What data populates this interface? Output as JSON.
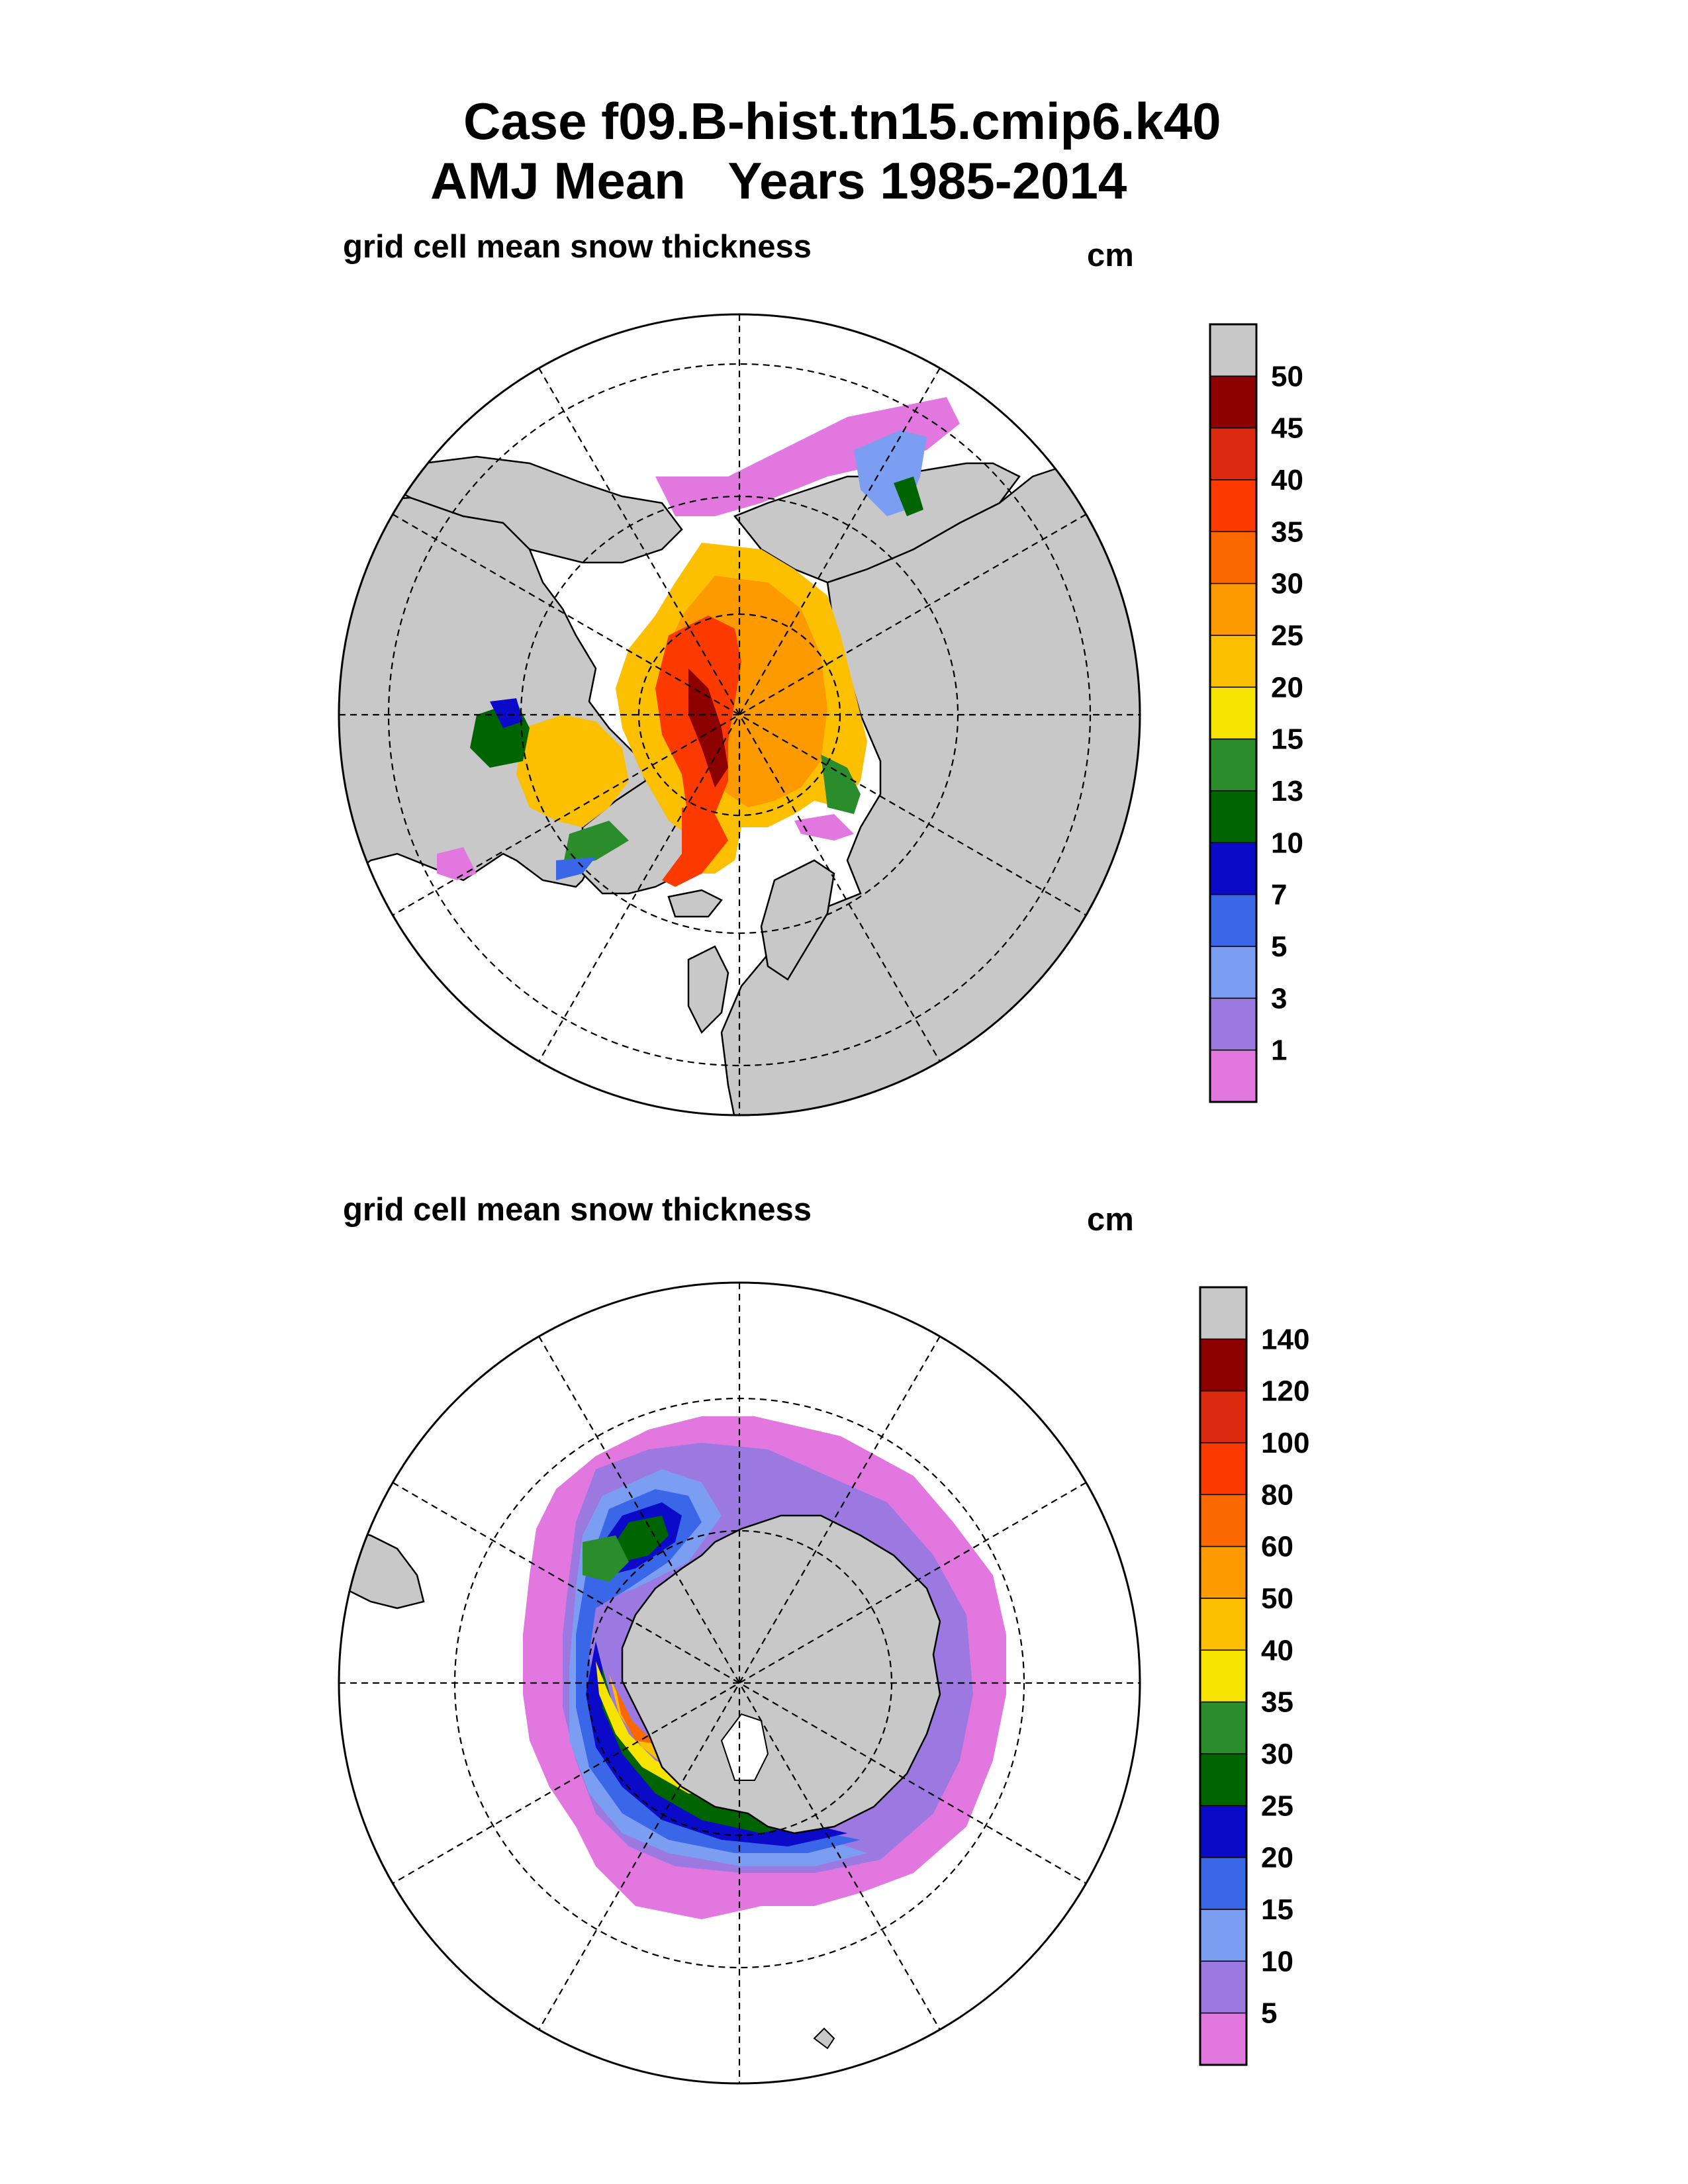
{
  "title_line1": "Case f09.B-hist.tn15.cmip6.k40",
  "title_line2": "AMJ Mean   Years 1985-2014",
  "chart_data": [
    {
      "type": "heatmap",
      "projection": "north-polar-stereographic",
      "title": "grid cell mean snow thickness",
      "units": "cm",
      "region": "Arctic",
      "colorbar": {
        "levels": [
          "1",
          "3",
          "5",
          "7",
          "10",
          "13",
          "15",
          "20",
          "25",
          "30",
          "35",
          "40",
          "45",
          "50"
        ],
        "colors": [
          "#e277e0",
          "#9b79e0",
          "#7b9ef2",
          "#3a66e8",
          "#0a0ac8",
          "#006400",
          "#2a8c2a",
          "#f6e400",
          "#fcc000",
          "#fc9a00",
          "#fc6800",
          "#fc3a00",
          "#dc2a10",
          "#8c0000",
          "#c8c8c8"
        ]
      }
    },
    {
      "type": "heatmap",
      "projection": "south-polar-stereographic",
      "title": "grid cell mean snow thickness",
      "units": "cm",
      "region": "Antarctic",
      "colorbar": {
        "levels": [
          "5",
          "10",
          "15",
          "20",
          "25",
          "30",
          "35",
          "40",
          "50",
          "60",
          "80",
          "100",
          "120",
          "140"
        ],
        "colors": [
          "#e277e0",
          "#9b79e0",
          "#7b9ef2",
          "#3a66e8",
          "#0a0ac8",
          "#006400",
          "#2a8c2a",
          "#f6e400",
          "#fcc000",
          "#fc9a00",
          "#fc6800",
          "#fc3a00",
          "#dc2a10",
          "#8c0000",
          "#c8c8c8"
        ]
      }
    }
  ]
}
